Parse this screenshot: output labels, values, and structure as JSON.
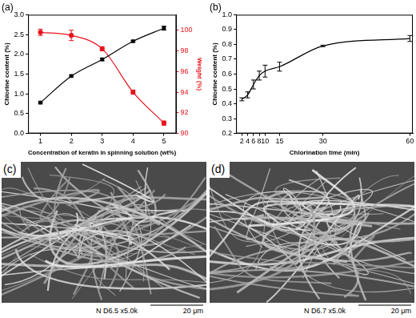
{
  "chart_data": [
    {
      "type": "line",
      "title": "(a)",
      "x_label": "Concentration of keratin in spinning solution (wt%)",
      "y_label": "Chlorine content (%)",
      "y2_label": "Weight (%)",
      "xlim": [
        0.6,
        5.4
      ],
      "xticks": [
        1,
        2,
        3,
        4,
        5
      ],
      "ylim": [
        0,
        3
      ],
      "yticks": [
        {
          "value": 0,
          "label": "0.0"
        },
        0.5,
        {
          "value": 1,
          "label": "1.0"
        },
        1.5,
        {
          "value": 2,
          "label": "2.0"
        },
        2.5,
        {
          "value": 3,
          "label": "3.0"
        }
      ],
      "y2lim": [
        90,
        101.5
      ],
      "y2ticks": [
        90,
        92,
        94,
        96,
        98,
        100
      ],
      "grid": false,
      "x": [
        1,
        2,
        3,
        4,
        5
      ],
      "series": [
        {
          "color": "#000000",
          "marker": "square",
          "line_style": "solid",
          "values": [
            0.78,
            1.45,
            1.87,
            2.33,
            2.66
          ],
          "errors": [
            0.02,
            0.02,
            0.03,
            0.02,
            0.05
          ]
        },
        {
          "color": "#e8141c",
          "marker": "circle",
          "line_style": "solid",
          "axis": "y2",
          "values": [
            99.8,
            99.5,
            98.2,
            94.0,
            91.0
          ],
          "errors": [
            0.3,
            0.5,
            0.2,
            0.2,
            0.2
          ]
        }
      ]
    },
    {
      "type": "line",
      "title": "(b)",
      "x_label": "Chlorination time (min)",
      "y_label": "Chlorine content (%)",
      "xlim": [
        0,
        61
      ],
      "xticks": [
        2,
        4,
        6,
        8,
        10,
        15,
        30,
        60
      ],
      "ylim": [
        0.2,
        1
      ],
      "yticks": [
        0.2,
        0.3,
        0.4,
        0.5,
        0.6,
        0.7,
        0.8,
        0.9,
        {
          "value": 1,
          "label": "1.0"
        }
      ],
      "grid": false,
      "x": [
        2,
        4,
        6,
        8,
        10,
        15,
        30,
        60
      ],
      "series": [
        {
          "color": "#000000",
          "marker": "none",
          "line_style": "solid",
          "values": [
            0.43,
            0.46,
            0.53,
            0.59,
            0.62,
            0.65,
            0.79,
            0.84
          ],
          "errors": [
            0.01,
            0.02,
            0.03,
            0.03,
            0.04,
            0.03,
            0.005,
            0.02
          ]
        }
      ]
    }
  ],
  "images": [
    {
      "label": "(c)",
      "caption": "N D6.5 x5.0k",
      "scale_bar": "20 μm"
    },
    {
      "label": "(d)",
      "caption": "N D6.7 x5.0k",
      "scale_bar": "20 μm"
    }
  ]
}
